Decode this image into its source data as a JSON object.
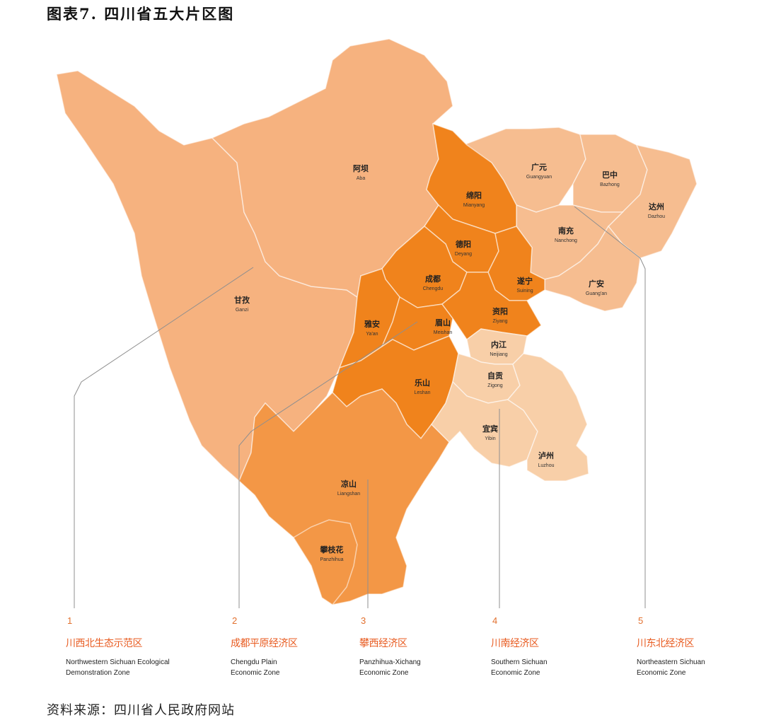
{
  "title": "图表7.   四川省五大片区图",
  "source": "资料来源：四川省人民政府网站",
  "colors": {
    "zone1": "#f6b27f",
    "zone2": "#f0831c",
    "zone3": "#f39746",
    "zone4": "#f8cfa8",
    "zone5": "#f6bd90"
  },
  "cities": [
    {
      "zh": "阿坝",
      "en": "Aba"
    },
    {
      "zh": "甘孜",
      "en": "Ganzi"
    },
    {
      "zh": "绵阳",
      "en": "Mianyang"
    },
    {
      "zh": "德阳",
      "en": "Deyang"
    },
    {
      "zh": "成都",
      "en": "Chengdu"
    },
    {
      "zh": "遂宁",
      "en": "Suining"
    },
    {
      "zh": "雅安",
      "en": "Ya'an"
    },
    {
      "zh": "眉山",
      "en": "Meishan"
    },
    {
      "zh": "资阳",
      "en": "Ziyang"
    },
    {
      "zh": "乐山",
      "en": "Leshan"
    },
    {
      "zh": "广元",
      "en": "Guangyuan"
    },
    {
      "zh": "巴中",
      "en": "Bazhong"
    },
    {
      "zh": "达州",
      "en": "Dazhou"
    },
    {
      "zh": "南充",
      "en": "Nanchong"
    },
    {
      "zh": "广安",
      "en": "Guang'an"
    },
    {
      "zh": "内江",
      "en": "Neijiang"
    },
    {
      "zh": "自贡",
      "en": "Zigong"
    },
    {
      "zh": "宜宾",
      "en": "Yibin"
    },
    {
      "zh": "泸州",
      "en": "Luzhou"
    },
    {
      "zh": "凉山",
      "en": "Liangshan"
    },
    {
      "zh": "攀枝花",
      "en": "Panzhihua"
    }
  ],
  "zones": [
    {
      "num": "1",
      "zh": "川西北生态示范区",
      "en1": "Northwestern Sichuan Ecological",
      "en2": "Demonstration Zone"
    },
    {
      "num": "2",
      "zh": "成都平原经济区",
      "en1": "Chengdu Plain",
      "en2": "Economic Zone"
    },
    {
      "num": "3",
      "zh": "攀西经济区",
      "en1": "Panzhihua-Xichang",
      "en2": "Economic Zone"
    },
    {
      "num": "4",
      "zh": "川南经济区",
      "en1": "Southern Sichuan",
      "en2": "Economic Zone"
    },
    {
      "num": "5",
      "zh": "川东北经济区",
      "en1": "Northeastern Sichuan",
      "en2": "Economic Zone"
    }
  ]
}
